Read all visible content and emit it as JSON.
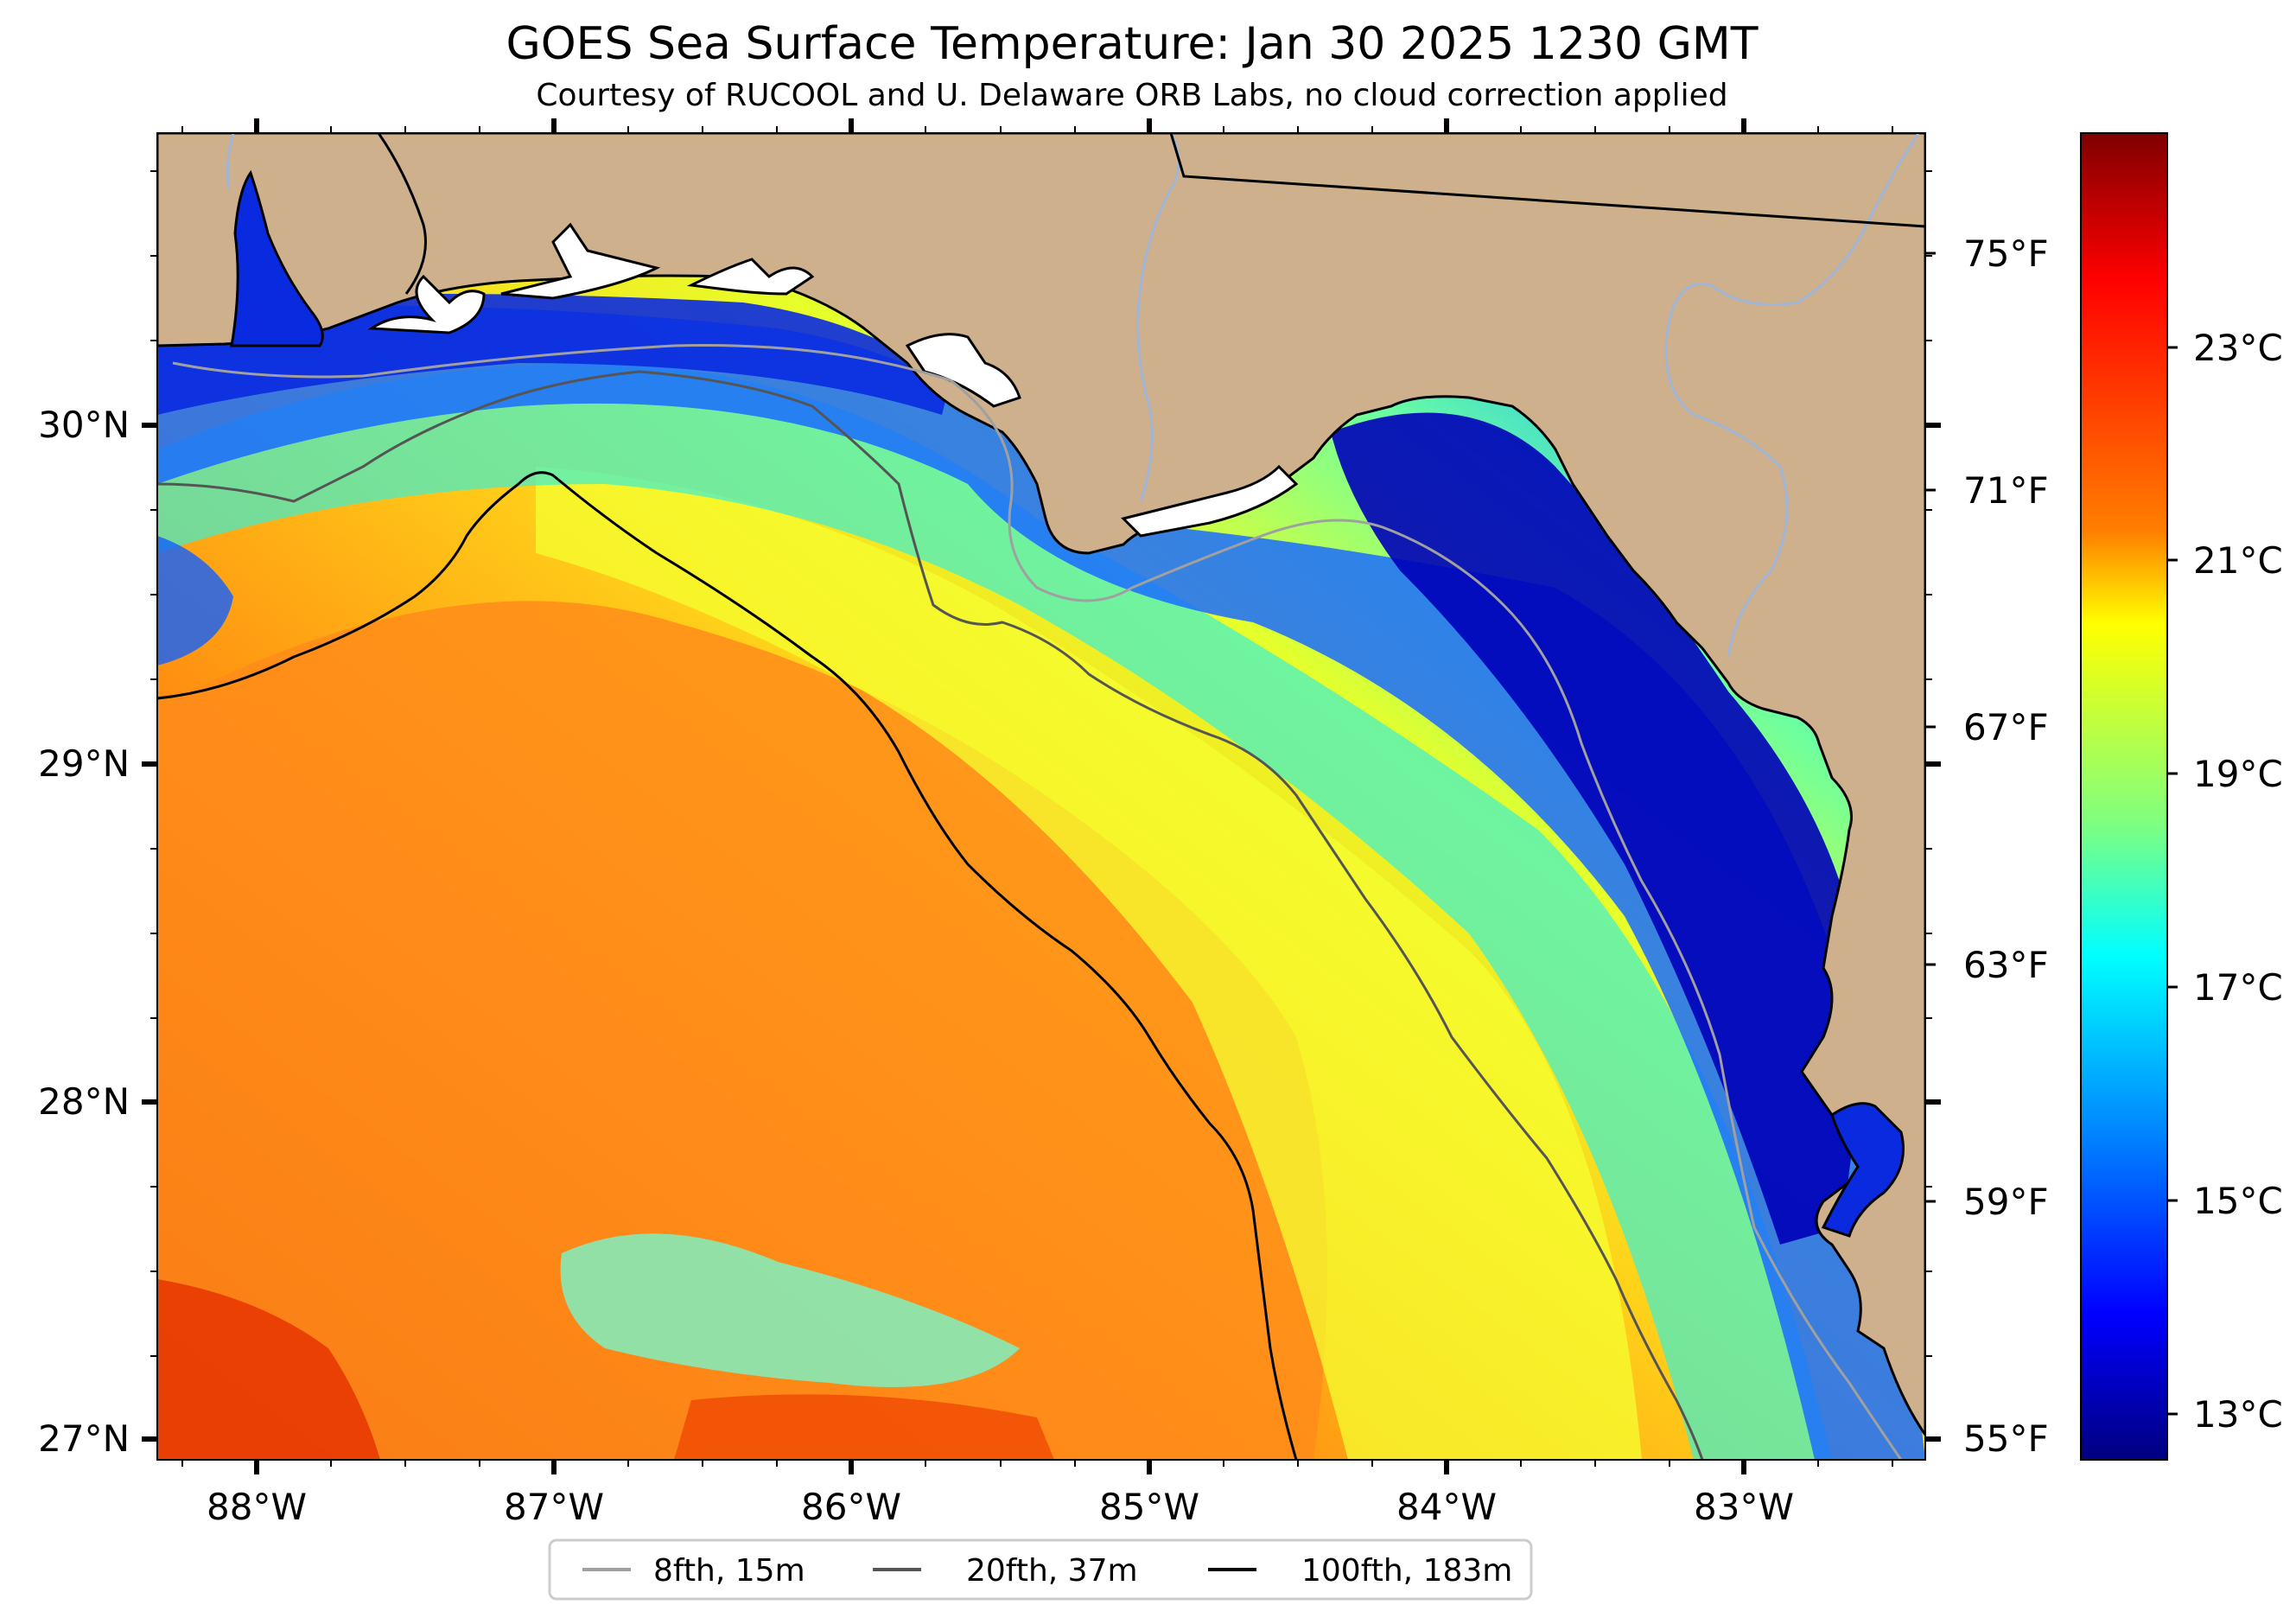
{
  "header": {
    "title": "GOES Sea Surface Temperature: Jan 30 2025 1230 GMT",
    "subtitle": "Courtesy of RUCOOL and U. Delaware ORB Labs, no cloud correction applied"
  },
  "map": {
    "lon_ticks": [
      "88°W",
      "87°W",
      "86°W",
      "85°W",
      "84°W",
      "83°W"
    ],
    "lat_ticks": [
      "30°N",
      "29°N",
      "28°N",
      "27°N"
    ],
    "f_ticks": [
      "75°F",
      "71°F",
      "67°F",
      "63°F",
      "59°F",
      "55°F"
    ],
    "colors": {
      "land": "#cfb08c",
      "coast": "#000000",
      "river": "#9fb6d6"
    }
  },
  "colorbar": {
    "labels": [
      "23°C",
      "21°C",
      "19°C",
      "17°C",
      "15°C",
      "13°C"
    ],
    "stops": [
      "#7f0000",
      "#ff0000",
      "#ff7f00",
      "#ffff00",
      "#7fff7f",
      "#00ffff",
      "#007fff",
      "#0000ff",
      "#00007f"
    ]
  },
  "legend": {
    "items": [
      {
        "label": "8fth, 15m",
        "color": "#a0a0a0"
      },
      {
        "label": "20fth, 37m",
        "color": "#555555"
      },
      {
        "label": "100fth, 183m",
        "color": "#000000"
      }
    ]
  }
}
